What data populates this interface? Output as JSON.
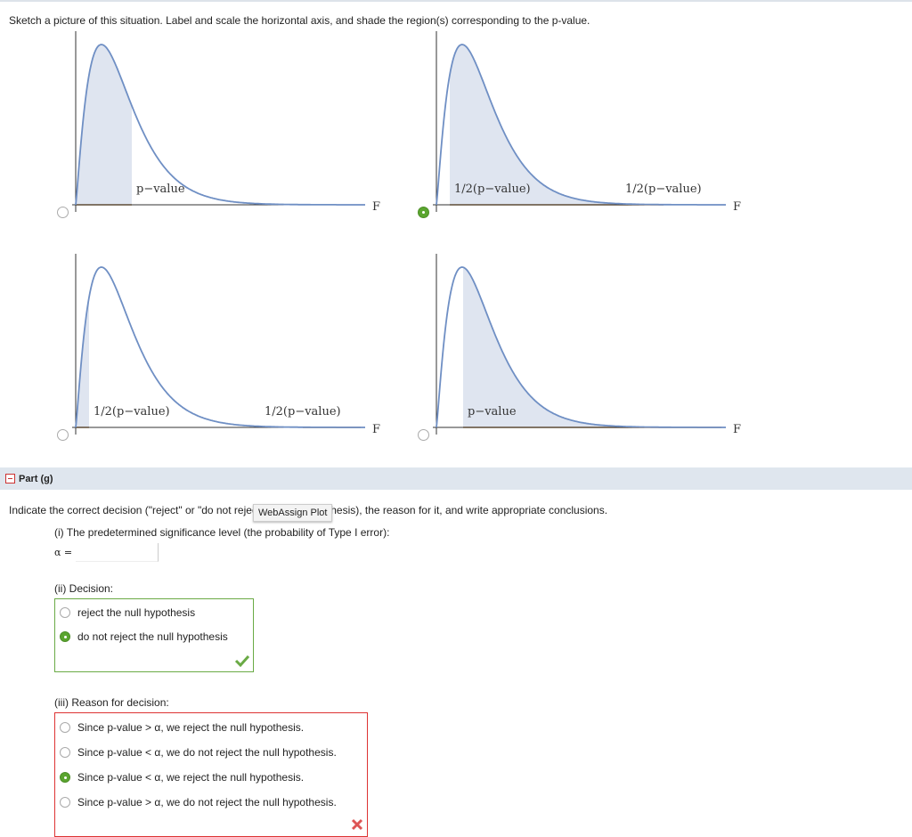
{
  "instruction": "Sketch a picture of this situation. Label and scale the horizontal axis, and shade the region(s) corresponding to the p-value.",
  "plots": [
    {
      "labels": [
        "p−value"
      ],
      "axis": "F",
      "selected": false
    },
    {
      "labels": [
        "1/2(p−value)",
        "1/2(p−value)"
      ],
      "axis": "F",
      "selected": true
    },
    {
      "labels": [
        "1/2(p−value)",
        "1/2(p−value)"
      ],
      "axis": "F",
      "selected": false
    },
    {
      "labels": [
        "p−value"
      ],
      "axis": "F",
      "selected": false
    }
  ],
  "part_header": "Part (g)",
  "question": "Indicate the correct decision (\"reject\" or \"do not reject\" the null hypothesis), the reason for it, and write appropriate conclusions.",
  "tooltip": "WebAssign Plot",
  "part_i": {
    "prompt": "(i) The predetermined significance level (the probability of Type I error):",
    "alpha_label": "α ="
  },
  "part_ii": {
    "prompt": "(ii) Decision:",
    "options": [
      "reject the null hypothesis",
      "do not reject the null hypothesis"
    ],
    "selected": 1,
    "correct": true
  },
  "part_iii": {
    "prompt": "(iii) Reason for decision:",
    "options": [
      "Since p-value > α, we reject the null hypothesis.",
      "Since p-value < α, we do not reject the null hypothesis.",
      "Since p-value < α, we reject the null hypothesis.",
      "Since p-value > α, we do not reject the null hypothesis."
    ],
    "selected": 2,
    "correct": false
  }
}
